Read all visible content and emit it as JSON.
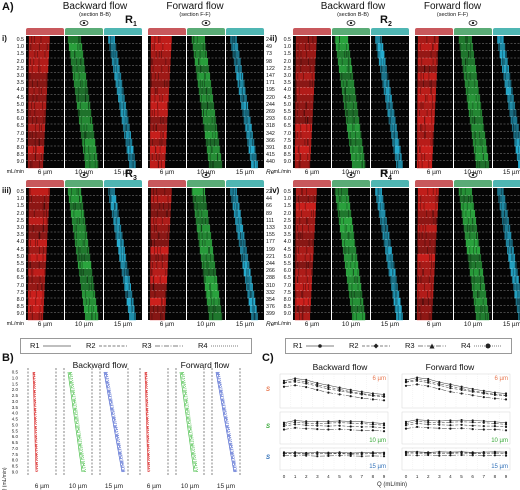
{
  "labels": {
    "A": "A)",
    "B": "B)",
    "C": "C)",
    "backward": "Backward flow",
    "forward": "Forward flow",
    "sec_b": "(section B-B)",
    "sec_f": "(section F-F)",
    "i": "i)",
    "ii": "ii)",
    "iii": "iii)",
    "iv": "iv)",
    "R": "R",
    "r1": "1",
    "r2": "2",
    "r3": "3",
    "r4": "4",
    "mlmin": "mL/min",
    "re": "Re",
    "w6": "6 µm",
    "w10": "10 µm",
    "w15": "15 µm",
    "c_ylab_s": "S",
    "c_xlabel": "Q (mL/min)",
    "b_ylabel": "Q (mL/min)"
  },
  "flow_rates": [
    "0.5",
    "1.0",
    "1.5",
    "2.0",
    "2.5",
    "3.0",
    "3.5",
    "4.0",
    "4.5",
    "5.0",
    "5.5",
    "6.0",
    "6.5",
    "7.0",
    "7.5",
    "8.0",
    "8.5",
    "9.0"
  ],
  "re_values": {
    "R1": [
      "24",
      "49",
      "73",
      "98",
      "122",
      "147",
      "171",
      "195",
      "220",
      "244",
      "269",
      "293",
      "318",
      "342",
      "366",
      "391",
      "415",
      "440"
    ],
    "R2": [
      "23",
      "46",
      "69",
      "92",
      "115",
      "138",
      "161",
      "184",
      "207",
      "230",
      "253",
      "277",
      "300",
      "323",
      "346",
      "369",
      "392",
      "415"
    ],
    "R3": [
      "22",
      "44",
      "66",
      "89",
      "111",
      "133",
      "155",
      "177",
      "199",
      "221",
      "244",
      "266",
      "288",
      "310",
      "332",
      "354",
      "376",
      "399"
    ],
    "R4": [
      "22",
      "43",
      "65",
      "86",
      "108",
      "129",
      "151",
      "173",
      "194",
      "216",
      "237",
      "259",
      "280",
      "302",
      "324",
      "345",
      "367",
      "388"
    ]
  },
  "legend": [
    "R1",
    "R2",
    "R3",
    "R4"
  ],
  "c_titles": {
    "w6": "6 µm",
    "w10": "10 µm",
    "w15": "15 µm"
  },
  "c_xticks": [
    "0",
    "1",
    "2",
    "3",
    "4",
    "5",
    "6",
    "7",
    "8",
    "9"
  ],
  "c_yticks": [
    "0.4",
    "0.6",
    "0.8",
    "1.0"
  ],
  "colors": {
    "red": "#e3231f",
    "green": "#2fb845",
    "cyan": "#29bfe6",
    "bar_red": "#c8585c",
    "bar_green": "#5aab76",
    "bar_teal": "#4fb6b3",
    "b_red": "#e05050",
    "b_green": "#4cc04c",
    "b_blue": "#5068d0",
    "c_orange": "#e87850",
    "c_green": "#38a838",
    "c_blue": "#3070b8"
  }
}
